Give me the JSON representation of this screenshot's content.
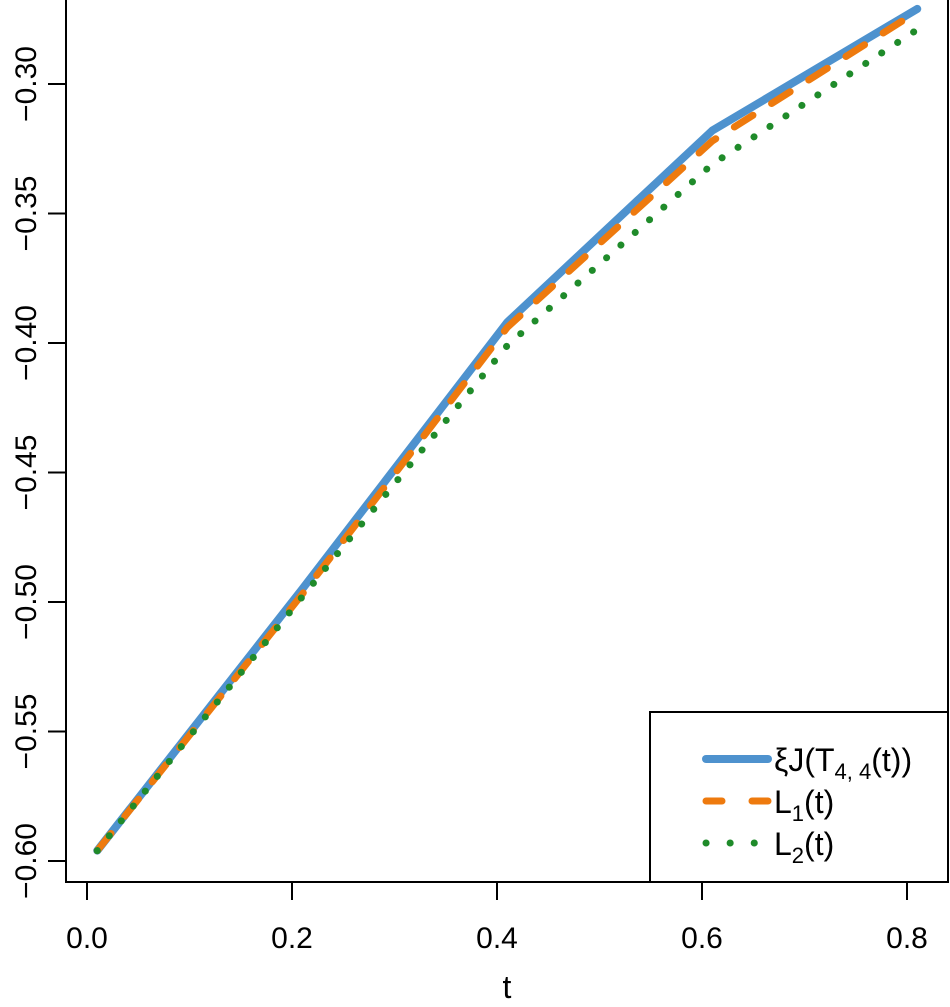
{
  "chart_data": {
    "type": "line",
    "title": "",
    "xlabel": "t",
    "ylabel": "",
    "xlim": [
      -0.011,
      0.83
    ],
    "ylim": [
      -0.609,
      -0.288
    ],
    "x_ticks": [
      "0.0",
      "0.2",
      "0.4",
      "0.6",
      "0.8"
    ],
    "y_ticks": [
      "-0.60",
      "-0.55",
      "-0.50",
      "-0.45",
      "-0.40",
      "-0.35",
      "-0.30"
    ],
    "grid": false,
    "legend_position": "bottom-right",
    "x": [
      0.01,
      0.21,
      0.41,
      0.61,
      0.81
    ],
    "series": [
      {
        "name": "ξJ(T4,4(t))",
        "label_main": "ξJ(T",
        "label_sub": "4, 4",
        "label_tail": "(t))",
        "style": "solid",
        "color": "#4E92CE",
        "values": [
          -0.596,
          -0.495,
          -0.392,
          -0.318,
          -0.271
        ]
      },
      {
        "name": "L1(t)",
        "label_main": "L",
        "label_sub": "1",
        "label_tail": "(t)",
        "style": "dashed",
        "color": "#EE7A0E",
        "values": [
          -0.596,
          -0.497,
          -0.394,
          -0.322,
          -0.272
        ]
      },
      {
        "name": "L2(t)",
        "label_main": "L",
        "label_sub": "2",
        "label_tail": "(t)",
        "style": "dotted",
        "color": "#1F8B2A",
        "values": [
          -0.596,
          -0.498,
          -0.401,
          -0.331,
          -0.279
        ]
      }
    ]
  }
}
